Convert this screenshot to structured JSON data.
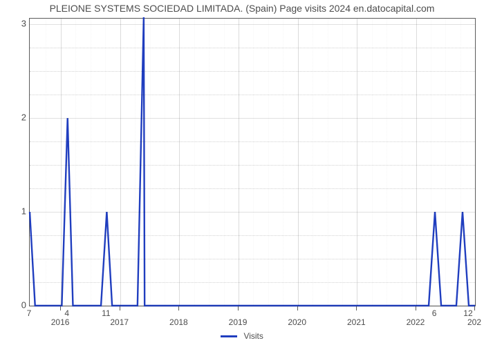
{
  "title": "PLEIONE SYSTEMS SOCIEDAD LIMITADA. (Spain) Page visits 2024 en.datocapital.com",
  "chart": {
    "type": "line",
    "background_color": "#ffffff",
    "plot_border_color": "#5a5a5a",
    "grid_color_major": "rgba(0,0,0,0.14)",
    "grid_color_minor": "rgba(0,0,0,0.18)",
    "line_color": "#203ebf",
    "line_width": 2.4,
    "title_color": "#4c4c4c",
    "title_fontsize": 14,
    "label_color": "#4c4c4c",
    "x_major_ticks": [
      "2016",
      "2017",
      "2018",
      "2019",
      "2020",
      "2021",
      "2022",
      "202"
    ],
    "x_major_positions_u": [
      0.07,
      0.203,
      0.336,
      0.469,
      0.602,
      0.735,
      0.868,
      1.0
    ],
    "x_minor_count_per_interval": 3,
    "y_ticks": [
      0,
      1,
      2,
      3
    ],
    "y_minor_count_per_interval": 3,
    "ylim": [
      0,
      3.06
    ],
    "x_domain_u": [
      0,
      1
    ],
    "series": {
      "label": "Visits",
      "points_u": [
        [
          0.0,
          1.0
        ],
        [
          0.012,
          0.0
        ],
        [
          0.072,
          0.0
        ],
        [
          0.085,
          2.0
        ],
        [
          0.097,
          0.0
        ],
        [
          0.16,
          0.0
        ],
        [
          0.173,
          1.0
        ],
        [
          0.185,
          0.0
        ],
        [
          0.242,
          0.0
        ],
        [
          0.256,
          3.1
        ],
        [
          0.258,
          0.0
        ],
        [
          0.896,
          0.0
        ],
        [
          0.91,
          1.0
        ],
        [
          0.924,
          0.0
        ],
        [
          0.958,
          0.0
        ],
        [
          0.972,
          1.0
        ],
        [
          0.986,
          0.0
        ],
        [
          1.0,
          0.0
        ]
      ],
      "point_markers_u": [
        {
          "u": 0.0,
          "label": "7"
        },
        {
          "u": 0.085,
          "label": "4"
        },
        {
          "u": 0.173,
          "label": "11"
        },
        {
          "u": 0.91,
          "label": "6"
        },
        {
          "u": 0.986,
          "label": "12"
        }
      ]
    },
    "legend": {
      "label": "Visits",
      "color": "#203ebf"
    }
  }
}
